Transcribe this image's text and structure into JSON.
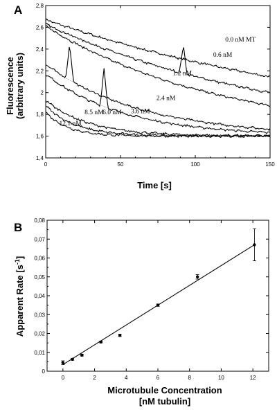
{
  "chart_data": [
    {
      "panel": "A",
      "type": "line",
      "xlabel": "Time [s]",
      "ylabel_lines": [
        "Fluorescence",
        "(arbitrary units)"
      ],
      "xlim": [
        0,
        150
      ],
      "ylim": [
        1.4,
        2.8
      ],
      "x_ticks": [
        0,
        50,
        100,
        150
      ],
      "x_tick_labels": [
        "0",
        "50",
        "100",
        "150"
      ],
      "y_ticks": [
        1.4,
        1.6,
        1.8,
        2.0,
        2.2,
        2.4,
        2.6,
        2.8
      ],
      "y_tick_labels": [
        "1,4",
        "1,6",
        "1,8",
        "2",
        "2,2",
        "2,4",
        "2,6",
        "2,8"
      ],
      "series": [
        {
          "name": "0.0 nM MT",
          "y0": 2.67,
          "yinf": 1.6,
          "rate": 0.0045,
          "label_xy": [
            120,
            2.47
          ]
        },
        {
          "name": "0.6 nM",
          "y0": 2.63,
          "yinf": 1.6,
          "rate": 0.0063,
          "label_xy": [
            112,
            2.33
          ]
        },
        {
          "name": "1.2 nM",
          "y0": 2.61,
          "yinf": 1.6,
          "rate": 0.0085,
          "label_xy": [
            85,
            2.16
          ]
        },
        {
          "name": "2.4 nM",
          "y0": 2.26,
          "yinf": 1.6,
          "rate": 0.0155,
          "label_xy": [
            74,
            1.93
          ]
        },
        {
          "name": "3.6 nM",
          "y0": 2.17,
          "yinf": 1.6,
          "rate": 0.019,
          "label_xy": [
            57,
            1.81
          ]
        },
        {
          "name": "6.0 nM",
          "y0": 1.93,
          "yinf": 1.6,
          "rate": 0.035,
          "label_xy": [
            38,
            1.8
          ]
        },
        {
          "name": "8.5 nM",
          "y0": 1.88,
          "yinf": 1.6,
          "rate": 0.05,
          "label_xy": [
            26,
            1.8
          ]
        },
        {
          "name": "12.1 nM",
          "y0": 1.82,
          "yinf": 1.6,
          "rate": 0.067,
          "label_xy": [
            9,
            1.7
          ]
        }
      ],
      "spikes": [
        {
          "series": 3,
          "x": 16,
          "y": 2.45
        },
        {
          "series": 4,
          "x": 39,
          "y": 2.22
        },
        {
          "series": 1,
          "x": 92,
          "y": 2.43
        }
      ]
    },
    {
      "panel": "B",
      "type": "scatter",
      "xlabel_lines": [
        "Microtubule Concentration",
        "[nM tubulin]"
      ],
      "ylabel": "Apparent Rate [s",
      "ylabel_sup": "-1",
      "ylabel_end": "]",
      "xlim": [
        -1,
        13
      ],
      "ylim": [
        0,
        0.08
      ],
      "x_ticks": [
        0,
        2,
        4,
        6,
        8,
        10,
        12
      ],
      "x_tick_labels": [
        "0",
        "2",
        "4",
        "6",
        "8",
        "10",
        "12"
      ],
      "y_ticks": [
        0,
        0.01,
        0.02,
        0.03,
        0.04,
        0.05,
        0.06,
        0.07,
        0.08
      ],
      "y_tick_labels": [
        "0",
        "0,01",
        "0,02",
        "0,03",
        "0,04",
        "0,05",
        "0,06",
        "0,07",
        "0,08"
      ],
      "points": [
        {
          "x": 0,
          "y": 0.0045,
          "err": 0.001
        },
        {
          "x": 0.6,
          "y": 0.0063,
          "err": 0.0005
        },
        {
          "x": 1.2,
          "y": 0.0085,
          "err": 0.0005
        },
        {
          "x": 2.4,
          "y": 0.0155,
          "err": 0.0005
        },
        {
          "x": 3.6,
          "y": 0.019,
          "err": 0.0006
        },
        {
          "x": 6.0,
          "y": 0.035,
          "err": 0.0006
        },
        {
          "x": 8.5,
          "y": 0.05,
          "err": 0.0012
        },
        {
          "x": 12.1,
          "y": 0.067,
          "err": 0.0085
        }
      ],
      "fit": {
        "x": [
          0,
          12.1
        ],
        "y": [
          0.0035,
          0.067
        ]
      }
    }
  ]
}
